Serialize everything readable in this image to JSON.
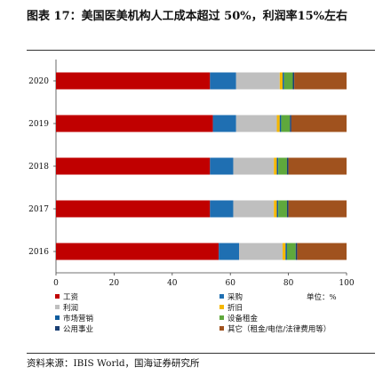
{
  "header": {
    "title": "图表 17：美国医美机构人工成本超过 50%，利润率15%左右"
  },
  "footer": {
    "source": "资料来源：IBIS World，国海证券研究所"
  },
  "chart_data": {
    "type": "bar",
    "orientation": "horizontal",
    "stacked": true,
    "categories": [
      "2020",
      "2019",
      "2018",
      "2017",
      "2016"
    ],
    "series": [
      {
        "name": "工资",
        "color": "#C00000",
        "values": [
          53,
          54,
          53,
          53,
          56
        ]
      },
      {
        "name": "采购",
        "color": "#1F6FB2",
        "values": [
          9,
          8,
          8,
          8,
          7
        ]
      },
      {
        "name": "利润",
        "color": "#BFBFBF",
        "values": [
          15,
          14,
          14,
          14,
          15
        ]
      },
      {
        "name": "折旧",
        "color": "#F5B700",
        "values": [
          1,
          1,
          1,
          1,
          1
        ]
      },
      {
        "name": "市场营销",
        "color": "#0F5C9E",
        "values": [
          0.5,
          0.5,
          0.5,
          0.5,
          0.5
        ]
      },
      {
        "name": "设备租金",
        "color": "#5FA83C",
        "values": [
          3,
          3,
          3,
          3,
          3
        ]
      },
      {
        "name": "公用事业",
        "color": "#1A3F73",
        "values": [
          0.5,
          0.5,
          0.5,
          0.5,
          0.5
        ]
      },
      {
        "name": "其它（租金/电信/法律费用等）",
        "color": "#A0521E",
        "values": [
          18,
          19,
          20,
          20,
          17
        ]
      }
    ],
    "xlim": [
      0,
      100
    ],
    "xticks": [
      0,
      20,
      40,
      60,
      80,
      100
    ],
    "unit_label": "单位：%",
    "grid": false,
    "legend": "bottom"
  }
}
